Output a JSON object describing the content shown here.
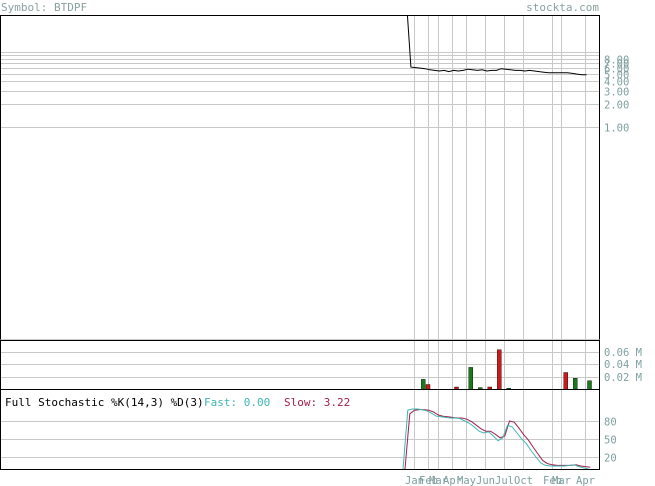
{
  "header": {
    "symbol_label": "Symbol: BTDPF",
    "source_label": "stockta.com"
  },
  "colors": {
    "background": "#ffffff",
    "frame": "#000000",
    "grid": "#c8c8c8",
    "header_text": "#8aa0a0",
    "axis_text": "#7f9f9f",
    "price_line": "#000000",
    "volume_up": "#1a7a1a",
    "volume_down": "#cc1a1a",
    "fast_line": "#3fb5b5",
    "slow_line": "#a0204a",
    "stoch_title": "#000000"
  },
  "chart_data": [
    {
      "type": "line",
      "panel": "price",
      "scale": "log",
      "ylim": [
        0.5,
        10.5
      ],
      "y_ticks": [
        "8.00",
        "7.00",
        "6.00",
        "5.00",
        "4.00",
        "3.00",
        "2.00",
        "1.00"
      ],
      "y_tick_values": [
        8,
        7,
        6,
        5,
        4,
        3,
        2,
        1
      ],
      "series": [
        {
          "values": [
            12,
            6.2,
            6.1,
            6.0,
            5.9,
            5.7,
            5.6,
            5.5,
            5.6,
            5.4,
            5.6,
            5.5,
            5.6,
            5.8,
            5.7,
            5.6,
            5.7,
            5.5,
            5.6,
            5.6,
            5.9,
            5.8,
            5.7,
            5.6,
            5.6,
            5.5,
            5.6,
            5.5,
            5.4,
            5.3,
            5.2,
            5.2,
            5.2,
            5.2,
            5.2,
            5.1,
            5.0,
            4.9,
            4.9
          ]
        }
      ]
    },
    {
      "type": "bar",
      "panel": "volume",
      "unit": "M",
      "ylim": [
        0,
        0.08
      ],
      "y_ticks": [
        "0.06 M",
        "0.04 M",
        "0.02 M"
      ],
      "y_tick_values": [
        0.06,
        0.04,
        0.02
      ],
      "bars": [
        {
          "date_index": 3,
          "value": 0.016,
          "direction": "up"
        },
        {
          "date_index": 4,
          "value": 0.008,
          "direction": "down"
        },
        {
          "date_index": 10,
          "value": 0.004,
          "direction": "down"
        },
        {
          "date_index": 13,
          "value": 0.035,
          "direction": "up"
        },
        {
          "date_index": 15,
          "value": 0.003,
          "direction": "up"
        },
        {
          "date_index": 17,
          "value": 0.004,
          "direction": "down"
        },
        {
          "date_index": 19,
          "value": 0.063,
          "direction": "down"
        },
        {
          "date_index": 21,
          "value": 0.002,
          "direction": "up"
        },
        {
          "date_index": 33,
          "value": 0.027,
          "direction": "down"
        },
        {
          "date_index": 35,
          "value": 0.018,
          "direction": "up"
        },
        {
          "date_index": 38,
          "value": 0.014,
          "direction": "up"
        }
      ]
    },
    {
      "type": "line",
      "panel": "stochastic",
      "title": "Full Stochastic %K(14,3) %D(3)",
      "fast_label": "Fast: 0.00",
      "slow_label": "Slow: 3.22",
      "ylim": [
        0,
        100
      ],
      "y_ticks": [
        "80",
        "50",
        "20"
      ],
      "y_tick_values": [
        80,
        50,
        20
      ],
      "series": [
        {
          "name": "Fast",
          "values": [
            0,
            98,
            100,
            100,
            99,
            97,
            93,
            88,
            87,
            86,
            85,
            85,
            84,
            80,
            76,
            70,
            63,
            60,
            62,
            55,
            47,
            52,
            73,
            70,
            60,
            50,
            42,
            30,
            20,
            10,
            6,
            5,
            5,
            5,
            5,
            6,
            7,
            4,
            2,
            0
          ]
        },
        {
          "name": "Slow",
          "values": [
            0,
            92,
            98,
            99,
            99,
            98,
            95,
            90,
            88,
            87,
            86,
            85,
            85,
            83,
            79,
            73,
            67,
            63,
            63,
            58,
            52,
            55,
            80,
            78,
            68,
            57,
            48,
            36,
            25,
            14,
            9,
            7,
            6,
            6,
            6,
            6,
            7,
            5,
            4,
            3
          ]
        }
      ]
    },
    {
      "type": "table",
      "panel": "x-axis",
      "x_labels": [
        {
          "label": "Jan",
          "date_index": 1
        },
        {
          "label": "Feb",
          "date_index": 4
        },
        {
          "label": "Mar",
          "date_index": 6
        },
        {
          "label": "Apr",
          "date_index": 9
        },
        {
          "label": "May",
          "date_index": 12
        },
        {
          "label": "Jun",
          "date_index": 16
        },
        {
          "label": "Jul",
          "date_index": 20
        },
        {
          "label": "Oct",
          "date_index": 24
        },
        {
          "label": "Feb",
          "date_index": 30
        },
        {
          "label": "Mar",
          "date_index": 32
        },
        {
          "label": "Apr",
          "date_index": 37
        }
      ]
    }
  ]
}
